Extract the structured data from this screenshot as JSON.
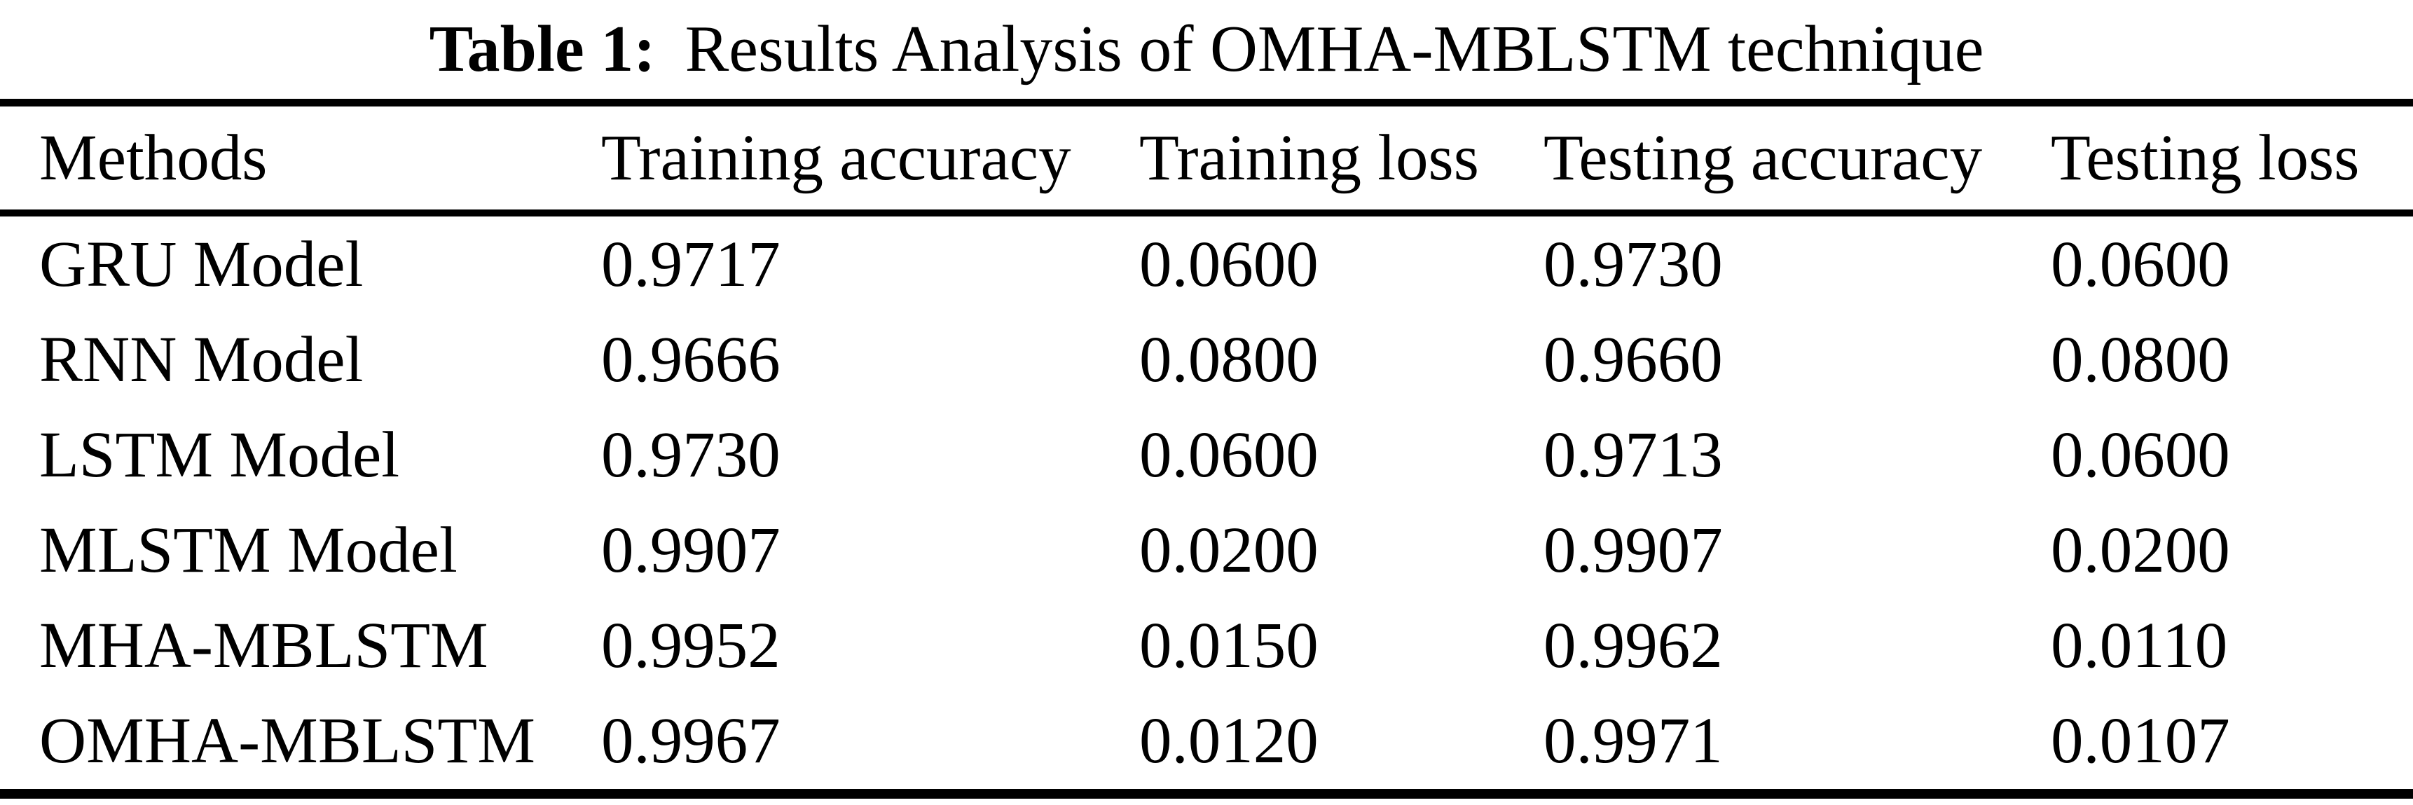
{
  "title": {
    "label": "Table 1:",
    "text": "Results Analysis of OMHA-MBLSTM technique"
  },
  "table": {
    "headers": [
      "Methods",
      "Training accuracy",
      "Training loss",
      "Testing accuracy",
      "Testing loss"
    ],
    "rows": [
      {
        "method": "GRU Model",
        "training_accuracy": "0.9717",
        "training_loss": "0.0600",
        "testing_accuracy": "0.9730",
        "testing_loss": "0.0600"
      },
      {
        "method": "RNN Model",
        "training_accuracy": "0.9666",
        "training_loss": "0.0800",
        "testing_accuracy": "0.9660",
        "testing_loss": "0.0800"
      },
      {
        "method": "LSTM Model",
        "training_accuracy": "0.9730",
        "training_loss": "0.0600",
        "testing_accuracy": "0.9713",
        "testing_loss": "0.0600"
      },
      {
        "method": "MLSTM Model",
        "training_accuracy": "0.9907",
        "training_loss": "0.0200",
        "testing_accuracy": "0.9907",
        "testing_loss": "0.0200"
      },
      {
        "method": "MHA-MBLSTM",
        "training_accuracy": "0.9952",
        "training_loss": "0.0150",
        "testing_accuracy": "0.9962",
        "testing_loss": "0.0110"
      },
      {
        "method": "OMHA-MBLSTM",
        "training_accuracy": "0.9967",
        "training_loss": "0.0120",
        "testing_accuracy": "0.9971",
        "testing_loss": "0.0107"
      }
    ]
  },
  "chart_data": {
    "type": "table",
    "title": "Table 1: Results Analysis of OMHA-MBLSTM technique",
    "columns": [
      "Methods",
      "Training accuracy",
      "Training loss",
      "Testing accuracy",
      "Testing loss"
    ],
    "rows": [
      [
        "GRU Model",
        0.9717,
        0.06,
        0.973,
        0.06
      ],
      [
        "RNN Model",
        0.9666,
        0.08,
        0.966,
        0.08
      ],
      [
        "LSTM Model",
        0.973,
        0.06,
        0.9713,
        0.06
      ],
      [
        "MLSTM Model",
        0.9907,
        0.02,
        0.9907,
        0.02
      ],
      [
        "MHA-MBLSTM",
        0.9952,
        0.015,
        0.9962,
        0.011
      ],
      [
        "OMHA-MBLSTM",
        0.9967,
        0.012,
        0.9971,
        0.0107
      ]
    ]
  },
  "colors": {
    "text": "#000000",
    "background": "#ffffff",
    "rule": "#000000"
  }
}
